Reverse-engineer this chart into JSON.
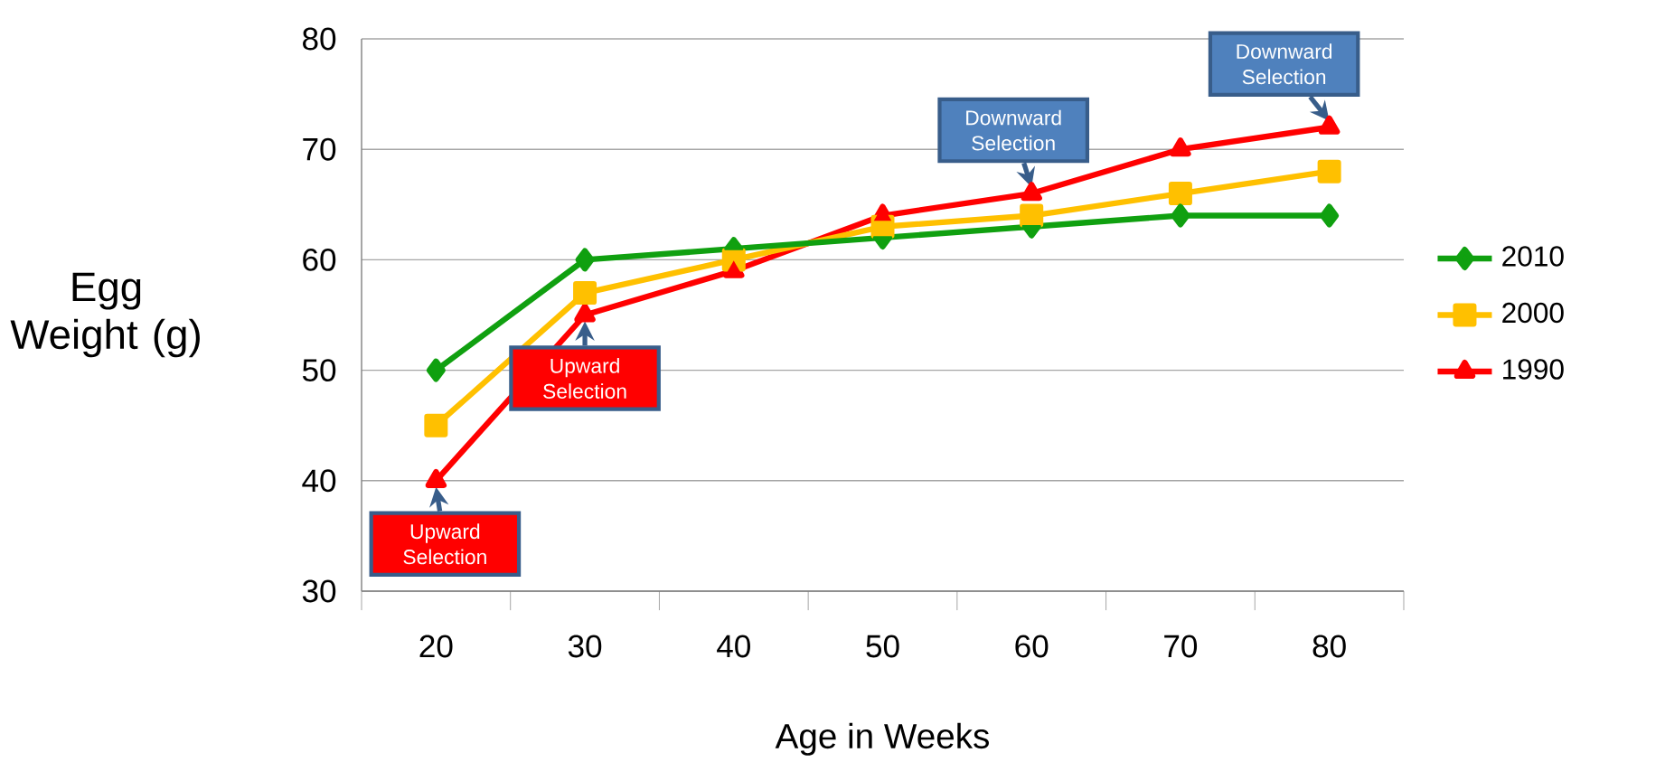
{
  "chart_data": {
    "type": "line",
    "xlabel": "Age in Weeks",
    "ylabel": "Egg Weight (g)",
    "categories": [
      "20",
      "30",
      "40",
      "50",
      "60",
      "70",
      "80"
    ],
    "series": [
      {
        "name": "2010",
        "color": "#10a010",
        "marker": "diamond",
        "values": [
          50,
          60,
          61,
          62,
          63,
          64,
          64
        ]
      },
      {
        "name": "2000",
        "color": "#ffc000",
        "marker": "square",
        "values": [
          45,
          57,
          60,
          63,
          64,
          66,
          68
        ]
      },
      {
        "name": "1990",
        "color": "#ff0000",
        "marker": "triangle",
        "values": [
          40,
          55,
          59,
          64,
          66,
          70,
          72
        ]
      }
    ],
    "ylim": [
      30,
      80
    ],
    "yticks": [
      30,
      40,
      50,
      60,
      70,
      80
    ],
    "grid": "y",
    "legend": "right",
    "annotations": [
      {
        "text": "Upward Selection",
        "x": "20",
        "y": 40
      },
      {
        "text": "Upward Selection",
        "x": "30",
        "y": 55
      },
      {
        "text": "Downward Selection",
        "x": "60",
        "y": 66
      },
      {
        "text": "Downward Selection",
        "x": "80",
        "y": 72
      }
    ]
  }
}
